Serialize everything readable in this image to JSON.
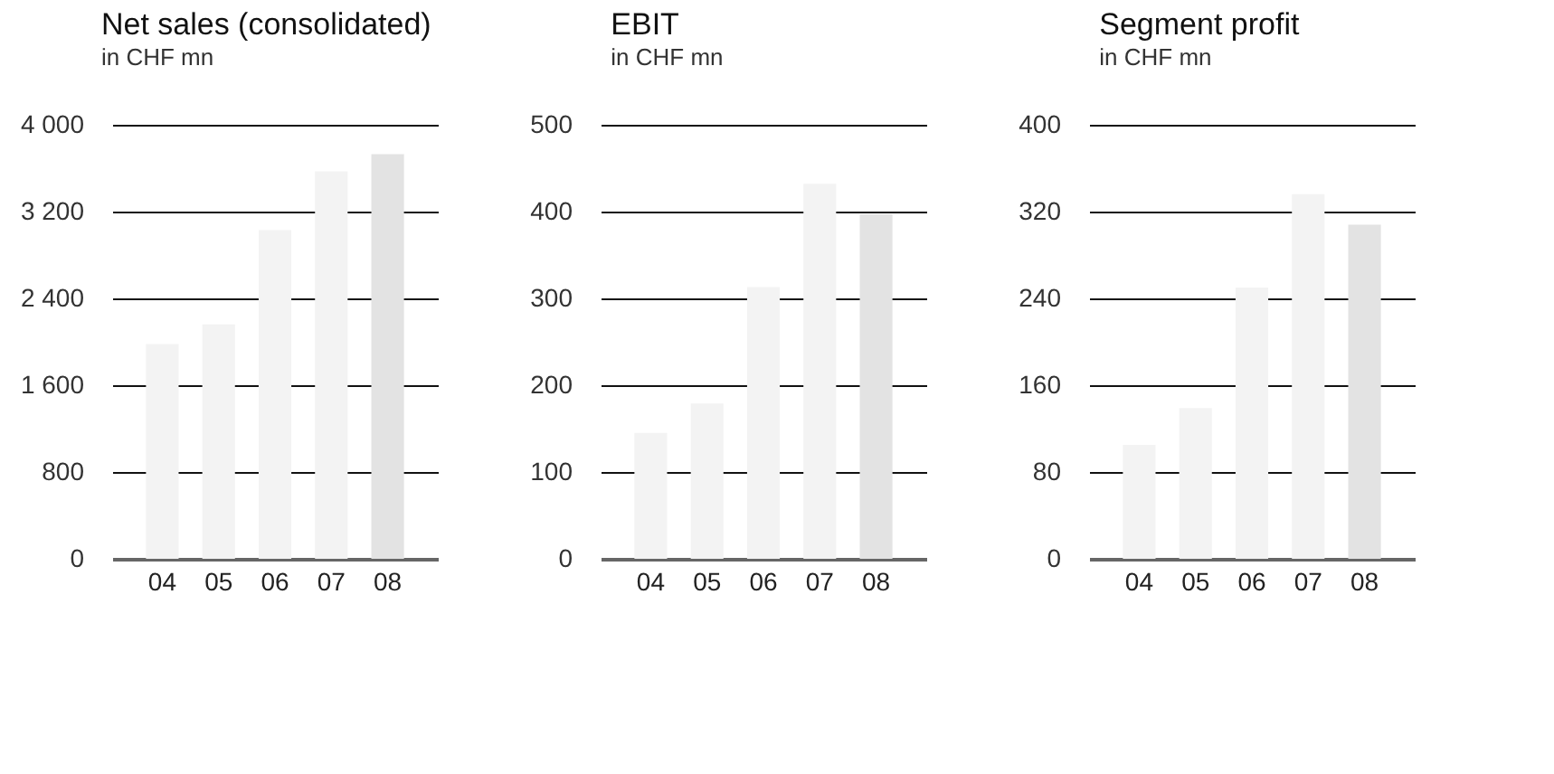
{
  "chart_data": [
    {
      "type": "bar",
      "title": "Net sales (consolidated)",
      "subtitle": "in CHF mn",
      "categories": [
        "04",
        "05",
        "06",
        "07",
        "08"
      ],
      "values": [
        1980,
        2160,
        3030,
        3570,
        3730
      ],
      "colors": [
        "#f3f3f3",
        "#f3f3f3",
        "#f3f3f3",
        "#f3f3f3",
        "#e3e3e3"
      ],
      "ylim": [
        0,
        4000
      ],
      "yticks": [
        0,
        800,
        {
          "value": 1600,
          "label": "1 600"
        },
        {
          "value": 2400,
          "label": "2 400"
        },
        {
          "value": 3200,
          "label": "3 200"
        },
        {
          "value": 4000,
          "label": "4 000"
        }
      ],
      "grid": "y",
      "legend": false
    },
    {
      "type": "bar",
      "title": "EBIT",
      "subtitle": "in CHF mn",
      "categories": [
        "04",
        "05",
        "06",
        "07",
        "08"
      ],
      "values": [
        145,
        179,
        313,
        432,
        397
      ],
      "colors": [
        "#f3f3f3",
        "#f3f3f3",
        "#f3f3f3",
        "#f3f3f3",
        "#e3e3e3"
      ],
      "ylim": [
        0,
        500
      ],
      "yticks": [
        0,
        100,
        200,
        300,
        400,
        500
      ],
      "grid": "y",
      "legend": false
    },
    {
      "type": "bar",
      "title": "Segment profit",
      "subtitle": "in CHF mn",
      "categories": [
        "04",
        "05",
        "06",
        "07",
        "08"
      ],
      "values": [
        105,
        139,
        250,
        336,
        308
      ],
      "colors": [
        "#f3f3f3",
        "#f3f3f3",
        "#f3f3f3",
        "#f3f3f3",
        "#e3e3e3"
      ],
      "ylim": [
        0,
        400
      ],
      "yticks": [
        0,
        80,
        160,
        240,
        320,
        400
      ],
      "grid": "y",
      "legend": false
    }
  ]
}
